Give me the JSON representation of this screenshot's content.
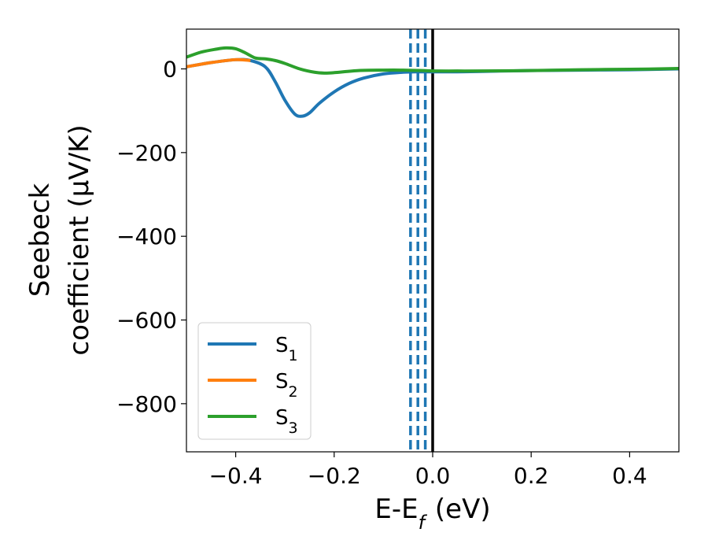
{
  "chart_data": {
    "type": "line",
    "xlabel": "E-E_f (eV)",
    "ylabel": [
      "Seebeck",
      "coefficient (μV/K)"
    ],
    "xlim": [
      -0.5,
      0.5
    ],
    "ylim": [
      -915,
      95
    ],
    "x_ticks": [
      -0.4,
      -0.2,
      0.0,
      0.2,
      0.4
    ],
    "x_tick_labels": [
      "−0.4",
      "−0.2",
      "0.0",
      "0.2",
      "0.4"
    ],
    "y_ticks": [
      0,
      -200,
      -400,
      -600,
      -800
    ],
    "y_tick_labels": [
      "0",
      "−200",
      "−400",
      "−600",
      "−800"
    ],
    "grid": false,
    "legend_position": "lower-left",
    "series": [
      {
        "name": "S1",
        "color": "#1f77b4",
        "x": [
          -0.5,
          -0.45,
          -0.4,
          -0.37,
          -0.34,
          -0.32,
          -0.3,
          -0.28,
          -0.265,
          -0.25,
          -0.23,
          -0.2,
          -0.17,
          -0.14,
          -0.1,
          -0.06,
          -0.03,
          0.0,
          0.05,
          0.1,
          0.2,
          0.3,
          0.4,
          0.5
        ],
        "y": [
          5,
          15,
          22,
          20,
          5,
          -30,
          -75,
          -108,
          -113,
          -105,
          -82,
          -55,
          -35,
          -22,
          -12,
          -8,
          -7,
          -7,
          -7,
          -6,
          -4,
          -3,
          -2,
          0
        ]
      },
      {
        "name": "S2",
        "color": "#ff7f0e",
        "x": [
          -0.5,
          -0.45,
          -0.4,
          -0.37
        ],
        "y": [
          5,
          15,
          22,
          20
        ]
      },
      {
        "name": "S3",
        "color": "#2ca02c",
        "x": [
          -0.5,
          -0.47,
          -0.44,
          -0.42,
          -0.4,
          -0.38,
          -0.36,
          -0.34,
          -0.32,
          -0.3,
          -0.27,
          -0.24,
          -0.22,
          -0.2,
          -0.15,
          -0.1,
          -0.06,
          -0.02,
          0.0,
          0.05,
          0.1,
          0.2,
          0.3,
          0.4,
          0.5
        ],
        "y": [
          28,
          40,
          47,
          50,
          48,
          38,
          26,
          24,
          20,
          13,
          0,
          -8,
          -10,
          -9,
          -4,
          -3,
          -3,
          -4,
          -5,
          -5,
          -5,
          -4,
          -2,
          -1,
          1
        ]
      }
    ],
    "vlines": [
      {
        "x": -0.045,
        "color": "#1f77b4",
        "style": "dashed"
      },
      {
        "x": -0.03,
        "color": "#1f77b4",
        "style": "dashed"
      },
      {
        "x": -0.015,
        "color": "#1f77b4",
        "style": "dashed"
      },
      {
        "x": 0.0,
        "color": "#000000",
        "style": "solid"
      }
    ]
  }
}
